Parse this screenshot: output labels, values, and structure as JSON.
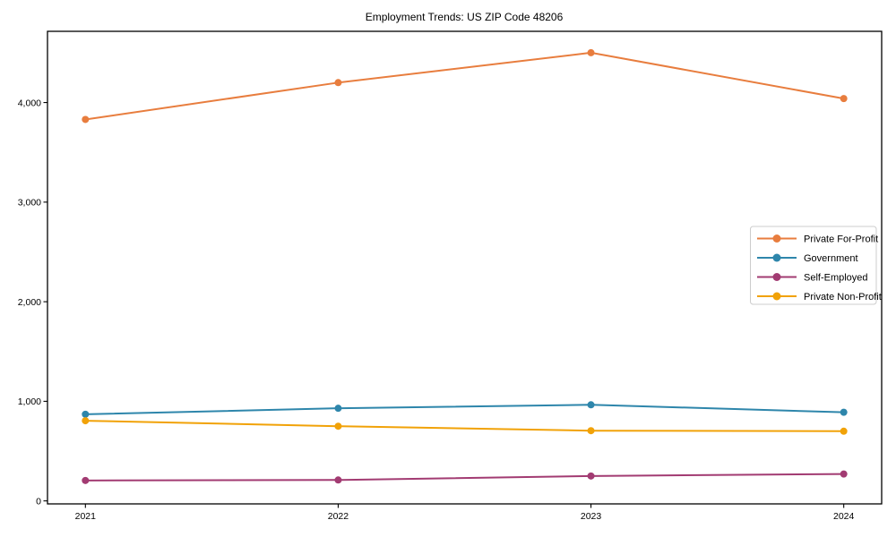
{
  "figure": {
    "background": "#ffffff",
    "frame_color": "#000000",
    "legend_border_color": "#cccccc",
    "legend_background": "#ffffff"
  },
  "chart_data": {
    "type": "line",
    "title": "Employment Trends: US ZIP Code 48206",
    "xlabel": "",
    "ylabel": "",
    "x": [
      "2021",
      "2022",
      "2023",
      "2024"
    ],
    "series": [
      {
        "name": "Private For-Profit",
        "color": "#E87D3E",
        "values": [
          3830,
          4200,
          4500,
          4040
        ]
      },
      {
        "name": "Government",
        "color": "#2E86AB",
        "values": [
          870,
          930,
          965,
          890
        ]
      },
      {
        "name": "Self-Employed",
        "color": "#A23B72",
        "values": [
          205,
          210,
          250,
          270
        ]
      },
      {
        "name": "Private Non-Profit",
        "color": "#F1A208",
        "values": [
          805,
          750,
          705,
          700
        ]
      }
    ],
    "yticks": [
      {
        "value": 0,
        "label": "0"
      },
      {
        "value": 1000,
        "label": "1,000"
      },
      {
        "value": 2000,
        "label": "2,000"
      },
      {
        "value": 3000,
        "label": "3,000"
      },
      {
        "value": 4000,
        "label": "4,000"
      }
    ],
    "ylim": [
      0,
      4700
    ],
    "grid": false,
    "legend_position": "center right",
    "marker": "circle"
  }
}
